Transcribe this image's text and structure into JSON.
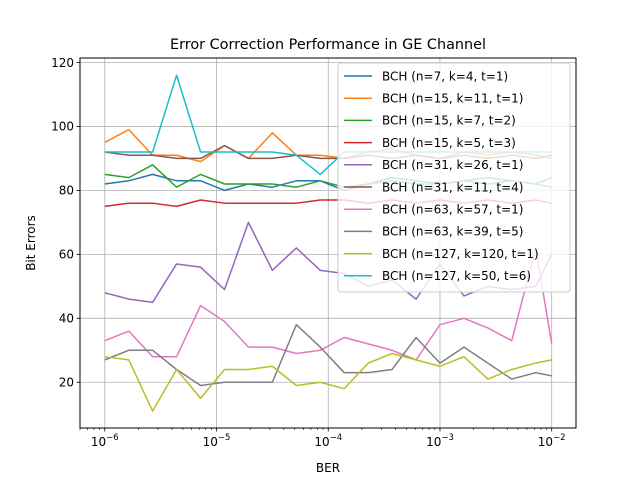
{
  "chart_data": {
    "type": "line",
    "title": "Error Correction Performance in GE Channel",
    "xlabel": "BER",
    "ylabel": "Bit Errors",
    "xscale": "log",
    "xlim": [
      6e-07,
      0.0165
    ],
    "ylim": [
      5.7,
      121.4
    ],
    "grid": true,
    "legend_position": "upper right",
    "xticks": [
      {
        "value": 1e-06,
        "base": "10",
        "exp": "−6"
      },
      {
        "value": 1e-05,
        "base": "10",
        "exp": "−5"
      },
      {
        "value": 0.0001,
        "base": "10",
        "exp": "−4"
      },
      {
        "value": 0.001,
        "base": "10",
        "exp": "−3"
      },
      {
        "value": 0.01,
        "base": "10",
        "exp": "−2"
      }
    ],
    "yticks": [
      20,
      40,
      60,
      80,
      100,
      120
    ],
    "x": [
      1e-06,
      1.64e-06,
      2.68e-06,
      4.39e-06,
      7.2e-06,
      1.18e-05,
      1.93e-05,
      3.16e-05,
      5.18e-05,
      8.48e-05,
      0.000139,
      0.000228,
      0.000373,
      0.000611,
      0.001,
      0.00164,
      0.00268,
      0.00439,
      0.0072,
      0.01
    ],
    "series": [
      {
        "name": "BCH (n=7, k=4, t=1)",
        "color": "#1f77b4",
        "values": [
          82,
          83,
          85,
          83,
          83,
          80,
          82,
          81,
          83,
          83,
          80,
          82,
          84,
          83,
          82,
          83,
          84,
          83,
          82,
          84
        ]
      },
      {
        "name": "BCH (n=15, k=11, t=1)",
        "color": "#ff7f0e",
        "values": [
          95,
          99,
          91,
          91,
          89,
          94,
          90,
          98,
          91,
          91,
          90,
          92,
          93,
          91,
          90,
          92,
          91,
          92,
          91,
          90
        ]
      },
      {
        "name": "BCH (n=15, k=7, t=2)",
        "color": "#2ca02c",
        "values": [
          85,
          84,
          88,
          81,
          85,
          82,
          82,
          82,
          81,
          83,
          81,
          82,
          83,
          82,
          82,
          83,
          82,
          83,
          82,
          81
        ]
      },
      {
        "name": "BCH (n=15, k=5, t=3)",
        "color": "#d62728",
        "values": [
          75,
          76,
          76,
          75,
          77,
          76,
          76,
          76,
          76,
          77,
          77,
          76,
          77,
          76,
          77,
          76,
          77,
          76,
          77,
          76
        ]
      },
      {
        "name": "BCH (n=31, k=26, t=1)",
        "color": "#9467bd",
        "values": [
          48,
          46,
          45,
          57,
          56,
          49,
          70,
          55,
          62,
          55,
          54,
          50,
          52,
          46,
          57,
          47,
          50,
          49,
          50,
          60
        ]
      },
      {
        "name": "BCH (n=31, k=11, t=4)",
        "color": "#8c564b",
        "values": [
          92,
          91,
          91,
          90,
          90,
          94,
          90,
          90,
          91,
          90,
          90,
          91,
          90,
          91,
          90,
          91,
          90,
          91,
          90,
          91
        ]
      },
      {
        "name": "BCH (n=63, k=57, t=1)",
        "color": "#e377c2",
        "values": [
          33,
          36,
          28,
          28,
          44,
          39,
          31,
          31,
          29,
          30,
          34,
          32,
          30,
          27,
          38,
          40,
          37,
          33,
          62,
          32
        ]
      },
      {
        "name": "BCH (n=63, k=39, t=5)",
        "color": "#7f7f7f",
        "values": [
          27,
          30,
          30,
          24,
          19,
          20,
          20,
          20,
          38,
          31,
          23,
          23,
          24,
          34,
          26,
          31,
          26,
          21,
          23,
          22
        ]
      },
      {
        "name": "BCH (n=127, k=120, t=1)",
        "color": "#bcbd22",
        "values": [
          28,
          27,
          11,
          24,
          15,
          24,
          24,
          25,
          19,
          20,
          18,
          26,
          29,
          27,
          25,
          28,
          21,
          24,
          26,
          27
        ]
      },
      {
        "name": "BCH (n=127, k=50, t=6)",
        "color": "#17becf",
        "values": [
          92,
          92,
          92,
          116,
          92,
          92,
          92,
          92,
          91,
          85,
          92,
          92,
          92,
          92,
          92,
          92,
          92,
          92,
          92,
          92
        ]
      }
    ]
  }
}
